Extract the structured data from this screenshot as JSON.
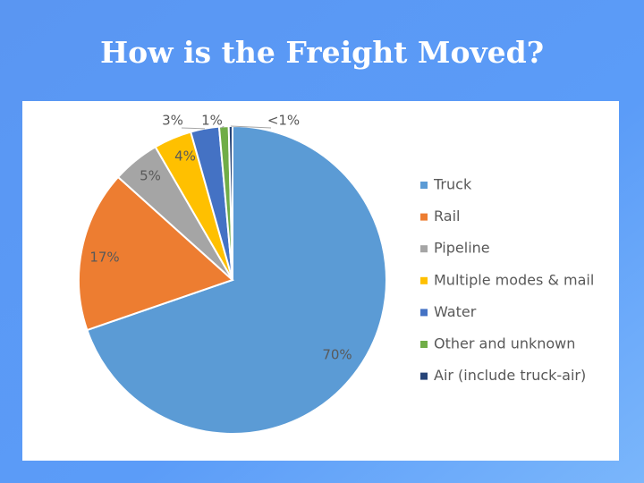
{
  "chart_data": {
    "type": "pie",
    "title": "How is the Freight Moved?",
    "categories": [
      "Truck",
      "Rail",
      "Pipeline",
      "Multiple modes & mail",
      "Water",
      "Other and unknown",
      "Air (include truck-air)"
    ],
    "values": [
      70,
      17,
      5,
      4,
      3,
      1,
      0.4
    ],
    "value_labels": [
      "70%",
      "17%",
      "5%",
      "4%",
      "3%",
      "1%",
      "<1%"
    ],
    "colors": [
      "#5b9bd5",
      "#ed7d31",
      "#a5a5a5",
      "#ffc000",
      "#4472c4",
      "#70ad47",
      "#264478"
    ],
    "legend": "right"
  }
}
